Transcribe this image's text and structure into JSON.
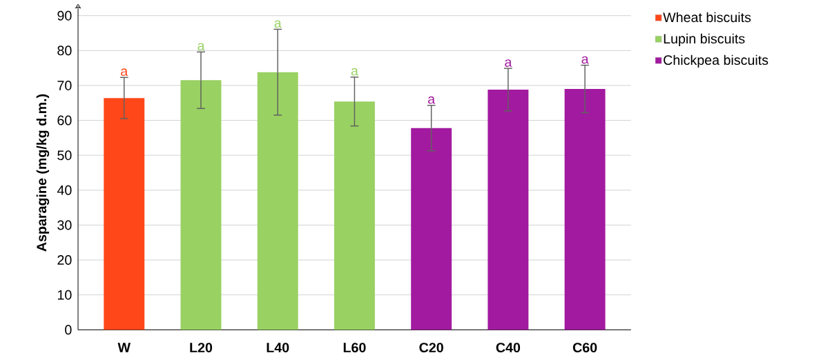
{
  "chart_data": {
    "type": "bar",
    "ylabel": "Asparagine (mg/kg d.m.)",
    "categories": [
      "W",
      "L20",
      "L40",
      "L60",
      "C20",
      "C40",
      "C60"
    ],
    "series": [
      {
        "name": "Wheat biscuits",
        "color": "#ff4719",
        "values": [
          66.4,
          null,
          null,
          null,
          null,
          null,
          null
        ],
        "errors": [
          5.9,
          null,
          null,
          null,
          null,
          null,
          null
        ]
      },
      {
        "name": "Lupin biscuits",
        "color": "#99d162",
        "values": [
          null,
          71.5,
          73.8,
          65.4,
          null,
          null,
          null
        ],
        "errors": [
          null,
          8.1,
          12.3,
          7.0,
          null,
          null,
          null
        ]
      },
      {
        "name": "Chickpea biscuits",
        "color": "#a21a9f",
        "values": [
          null,
          null,
          null,
          null,
          57.8,
          68.8,
          69.0
        ],
        "errors": [
          null,
          null,
          null,
          null,
          6.5,
          6.1,
          6.8
        ]
      }
    ],
    "ylim": [
      0,
      90
    ],
    "yticks": [
      0,
      10,
      20,
      30,
      40,
      50,
      60,
      70,
      80,
      90
    ],
    "grid": "y",
    "legend": "right",
    "annotations": [
      "a",
      "a",
      "a",
      "a",
      "a",
      "a",
      "a"
    ]
  }
}
